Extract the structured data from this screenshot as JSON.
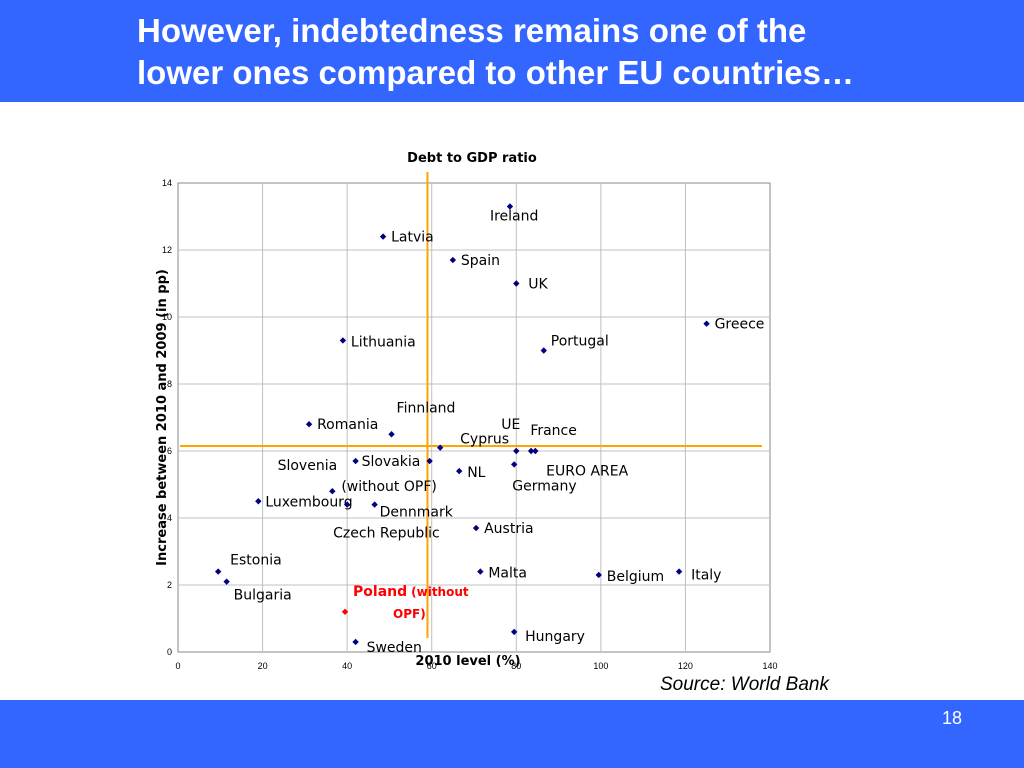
{
  "slide": {
    "title_line1": "However, indebtedness remains one of the",
    "title_line2": "lower ones compared to other EU countries…",
    "source": "Source: World Bank",
    "page_number": "18"
  },
  "colors": {
    "band": "#3366ff",
    "point": "#000080",
    "highlight": "#ff0000",
    "reference_line": "#ffa500",
    "grid": "#c0c0c0"
  },
  "chart_data": {
    "type": "scatter",
    "title": "Debt to GDP ratio",
    "xlabel": "2010 level (%)",
    "ylabel": "Increase between 2010 and 2009 (in pp)",
    "xlim": [
      0,
      140
    ],
    "ylim": [
      0,
      14
    ],
    "xticks": [
      0,
      20,
      40,
      60,
      80,
      100,
      120,
      140
    ],
    "yticks": [
      0,
      2,
      4,
      6,
      8,
      10,
      12,
      14
    ],
    "grid": true,
    "reference_lines": {
      "x": 59,
      "y": 6.15
    },
    "points": [
      {
        "label": "Ireland",
        "x": 78.5,
        "y": 13.3
      },
      {
        "label": "Latvia",
        "x": 48.5,
        "y": 12.4
      },
      {
        "label": "Spain",
        "x": 65,
        "y": 11.7
      },
      {
        "label": "UK",
        "x": 80,
        "y": 11
      },
      {
        "label": "Greece",
        "x": 125,
        "y": 9.8
      },
      {
        "label": "Lithuania",
        "x": 39,
        "y": 9.3
      },
      {
        "label": "Portugal",
        "x": 86.5,
        "y": 9
      },
      {
        "label": "Romania",
        "x": 31,
        "y": 6.8
      },
      {
        "label": "Finnland",
        "x": 50.5,
        "y": 6.5
      },
      {
        "label": "Cyprus",
        "x": 62,
        "y": 6.1
      },
      {
        "label": "UE",
        "x": 80,
        "y": 6
      },
      {
        "label": "France",
        "x": 84.5,
        "y": 6
      },
      {
        "label": "",
        "x": 83.5,
        "y": 6
      },
      {
        "label": "Slovenia",
        "x": 42,
        "y": 5.7
      },
      {
        "label": "Slovakia",
        "x": 59.5,
        "y": 5.7,
        "highlight_line": true
      },
      {
        "label": "EURO AREA",
        "x": 79.5,
        "y": 5.6
      },
      {
        "label": "NL",
        "x": 66.5,
        "y": 5.4
      },
      {
        "label": "Germany",
        "x": 80,
        "y": 5.6,
        "hidden": true
      },
      {
        "label": "(without OPF)",
        "x": 36.5,
        "y": 4.8
      },
      {
        "label": "Luxembourg",
        "x": 19,
        "y": 4.5
      },
      {
        "label": "Dennmark",
        "x": 46.5,
        "y": 4.4
      },
      {
        "label": "",
        "x": 40,
        "y": 4.4
      },
      {
        "label": "Czech Republic",
        "x": 40,
        "y": 4.4,
        "hidden": true
      },
      {
        "label": "Austria",
        "x": 70.5,
        "y": 3.7
      },
      {
        "label": "Estonia",
        "x": 9.5,
        "y": 2.4
      },
      {
        "label": "Malta",
        "x": 71.5,
        "y": 2.4
      },
      {
        "label": "Belgium",
        "x": 99.5,
        "y": 2.3
      },
      {
        "label": "Italy",
        "x": 118.5,
        "y": 2.4
      },
      {
        "label": "Bulgaria",
        "x": 11.5,
        "y": 2.1
      },
      {
        "label": "Poland",
        "label_suffix": "(without",
        "label_line2": "OPF)",
        "x": 39.5,
        "y": 1.2,
        "highlight": true
      },
      {
        "label": "Hungary",
        "x": 79.5,
        "y": 0.6
      },
      {
        "label": "Sweden",
        "x": 42,
        "y": 0.3
      }
    ]
  }
}
